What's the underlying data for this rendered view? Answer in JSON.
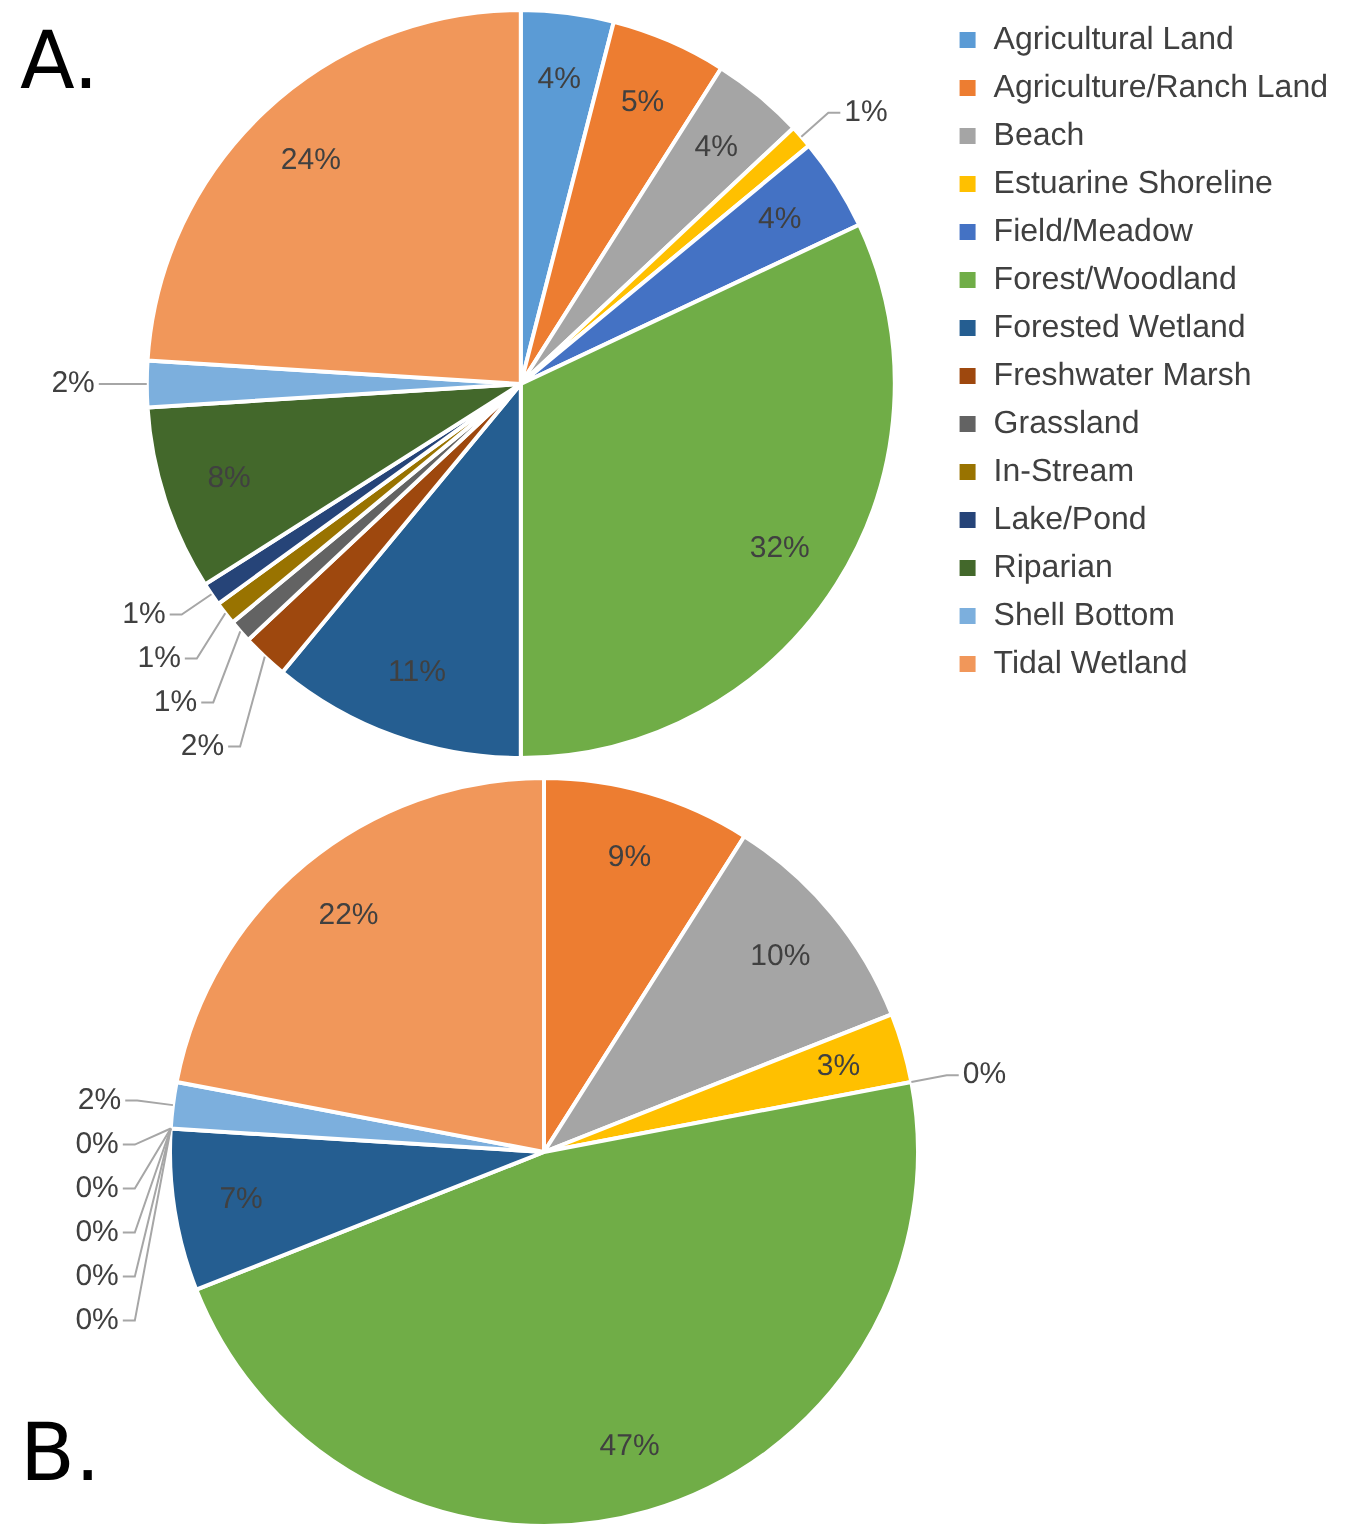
{
  "chart_data": [
    {
      "type": "pie",
      "title": "A.",
      "legend": "right",
      "categories": [
        "Agricultural Land",
        "Agriculture/Ranch Land",
        "Beach",
        "Estuarine Shoreline",
        "Field/Meadow",
        "Forest/Woodland",
        "Forested Wetland",
        "Freshwater Marsh",
        "Grassland",
        "In-Stream",
        "Lake/Pond",
        "Riparian",
        "Shell Bottom",
        "Tidal Wetland"
      ],
      "values": [
        4,
        5,
        4,
        1,
        4,
        32,
        11,
        2,
        1,
        1,
        1,
        8,
        2,
        24
      ],
      "value_labels": [
        "4%",
        "5%",
        "4%",
        "1%",
        "4%",
        "32%",
        "11%",
        "2%",
        "1%",
        "1%",
        "1%",
        "8%",
        "2%",
        "24%"
      ],
      "colors": [
        "#5b9bd5",
        "#ed7d31",
        "#a5a5a5",
        "#ffc000",
        "#4472c4",
        "#70ad47",
        "#255e91",
        "#9e480e",
        "#636363",
        "#997300",
        "#264478",
        "#43682b",
        "#7cafdd",
        "#f1975a"
      ]
    },
    {
      "type": "pie",
      "title": "B.",
      "categories": [
        null,
        null,
        null,
        null,
        null,
        null,
        null,
        null,
        null,
        null,
        null,
        null,
        null,
        null
      ],
      "values": [
        0,
        9,
        10,
        3,
        0,
        47,
        7,
        0,
        0,
        0,
        0,
        0,
        2,
        22
      ],
      "value_labels": [
        null,
        "9%",
        "10%",
        "3%",
        "0%",
        "47%",
        "7%",
        "0%",
        "0%",
        "0%",
        "0%",
        "0%",
        "2%",
        "22%"
      ],
      "colors": [
        "#5b9bd5",
        "#ed7d31",
        "#a5a5a5",
        "#ffc000",
        "#4472c4",
        "#70ad47",
        "#255e91",
        "#9e480e",
        "#636363",
        "#997300",
        "#264478",
        "#43682b",
        "#7cafdd",
        "#f1975a"
      ]
    }
  ]
}
